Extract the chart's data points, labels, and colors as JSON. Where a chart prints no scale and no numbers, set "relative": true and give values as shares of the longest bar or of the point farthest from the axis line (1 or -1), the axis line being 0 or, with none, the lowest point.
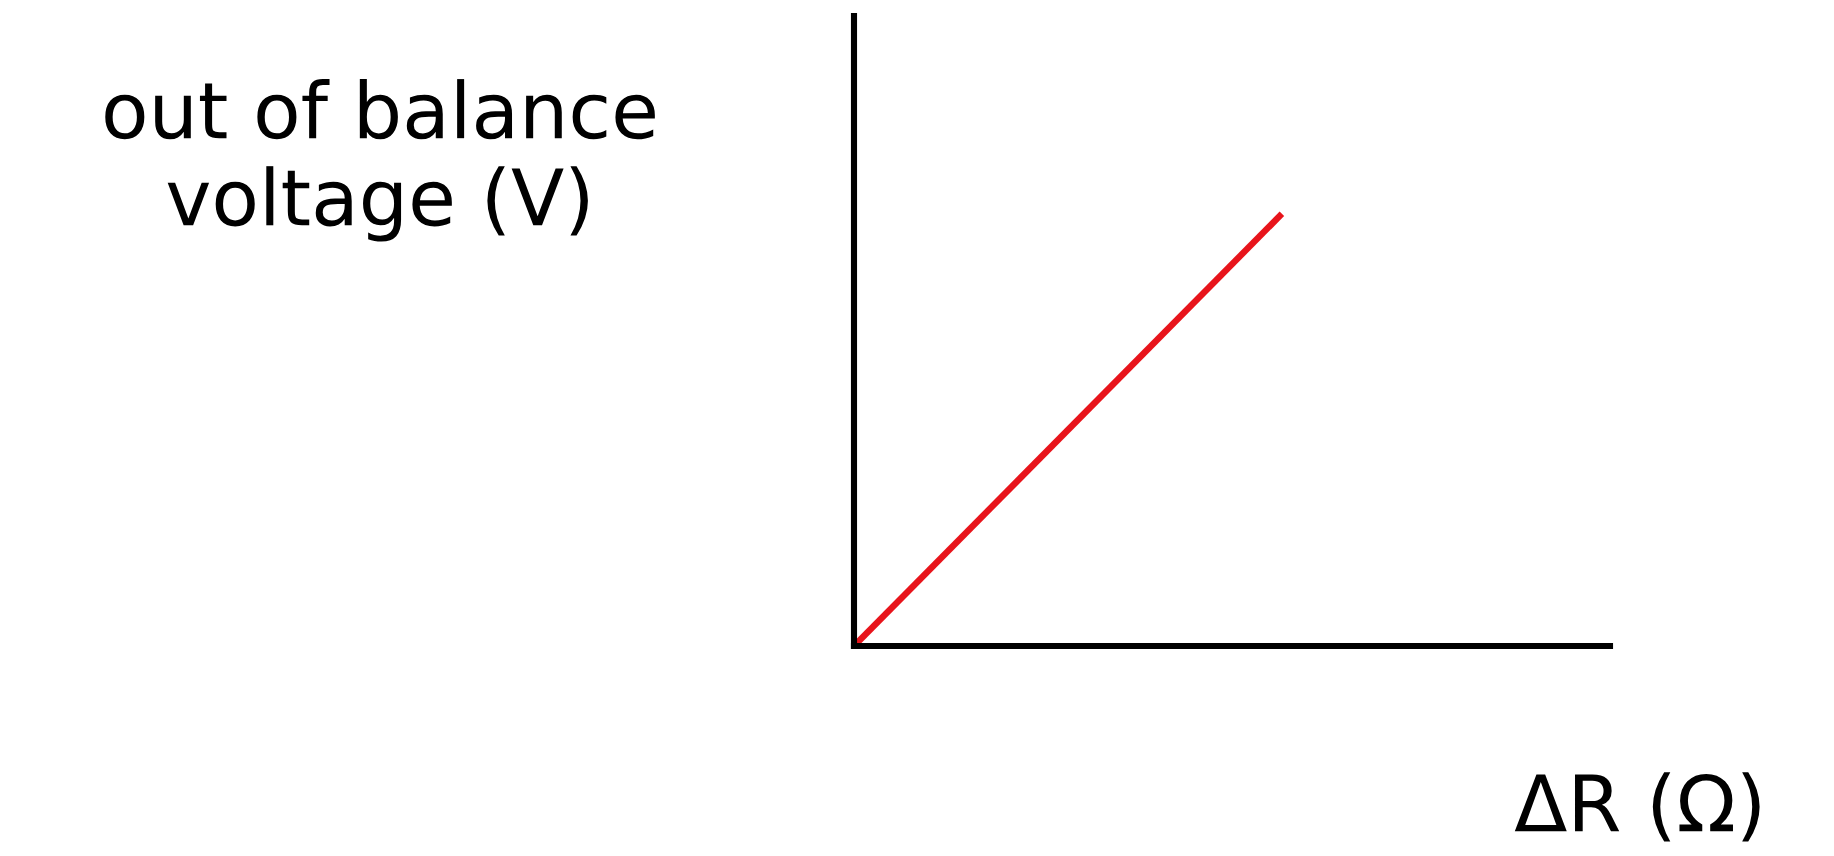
{
  "chart_data": {
    "type": "line",
    "xlabel": "ΔR (Ω)",
    "ylabel": "out of balance\nvoltage (V)",
    "categories": [
      null,
      null
    ],
    "relative": true,
    "series": [
      {
        "color": "#e8141b",
        "values": [
          0,
          1
        ]
      }
    ],
    "grid": false,
    "marker": "none",
    "line_style": "solid"
  }
}
